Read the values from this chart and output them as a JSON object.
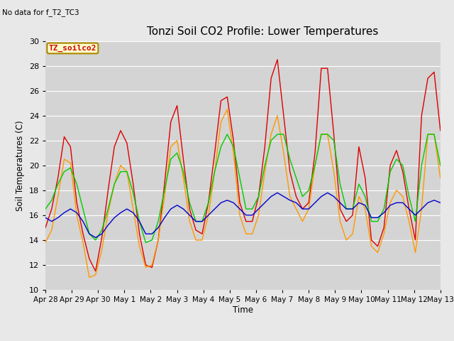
{
  "title": "Tonzi Soil CO2 Profile: Lower Temperatures",
  "top_left_text": "No data for f_T2_TC3",
  "annotation_text": "TZ_soilco2",
  "ylabel": "Soil Temperatures (C)",
  "xlabel": "Time",
  "ylim": [
    10,
    30
  ],
  "yticks": [
    10,
    12,
    14,
    16,
    18,
    20,
    22,
    24,
    26,
    28,
    30
  ],
  "bg_color": "#e8e8e8",
  "plot_bg_color": "#d4d4d4",
  "grid_color": "#ffffff",
  "series": {
    "open_8cm": {
      "color": "#dd0000"
    },
    "tree_8cm": {
      "color": "#ff9900"
    },
    "open_16cm": {
      "color": "#00cc00"
    },
    "tree_16cm": {
      "color": "#0000cc"
    }
  },
  "x_tick_labels": [
    "Apr 28",
    "Apr 29",
    "Apr 30",
    "May 1",
    "May 2",
    "May 3",
    "May 4",
    "May 5",
    "May 6",
    "May 7",
    "May 8",
    "May 9",
    "May 10",
    "May 11",
    "May 12",
    "May 13"
  ],
  "x_tick_positions": [
    0,
    4,
    8,
    12,
    16,
    20,
    24,
    28,
    32,
    36,
    40,
    44,
    48,
    52,
    56,
    60
  ],
  "open_8cm_data": [
    15.0,
    16.5,
    19.0,
    22.3,
    21.5,
    17.0,
    14.5,
    12.5,
    11.5,
    14.2,
    18.0,
    21.5,
    22.8,
    21.8,
    18.5,
    14.5,
    12.0,
    11.8,
    14.0,
    18.5,
    23.5,
    24.8,
    20.5,
    16.5,
    14.8,
    14.5,
    17.0,
    21.0,
    25.2,
    25.5,
    22.0,
    17.0,
    15.5,
    15.5,
    17.5,
    21.5,
    27.0,
    28.5,
    24.0,
    19.5,
    17.5,
    16.5,
    17.0,
    21.0,
    27.8,
    27.8,
    22.5,
    16.5,
    15.5,
    16.0,
    21.5,
    19.0,
    14.0,
    13.5,
    15.0,
    20.0,
    21.2,
    19.5,
    16.5,
    14.0,
    24.0,
    27.0,
    27.5,
    22.8
  ],
  "tree_8cm_data": [
    13.8,
    14.8,
    17.5,
    20.5,
    20.2,
    16.0,
    13.8,
    11.0,
    11.2,
    13.2,
    16.2,
    18.5,
    20.0,
    19.5,
    16.5,
    13.5,
    11.8,
    12.0,
    14.0,
    17.5,
    21.5,
    22.0,
    19.0,
    15.5,
    14.0,
    14.0,
    16.0,
    19.5,
    23.5,
    24.5,
    21.0,
    16.0,
    14.5,
    14.5,
    16.0,
    19.5,
    22.5,
    24.0,
    21.0,
    17.5,
    16.5,
    15.5,
    16.5,
    20.0,
    22.5,
    22.5,
    19.5,
    15.5,
    14.0,
    14.5,
    17.5,
    16.5,
    13.5,
    13.0,
    14.5,
    17.0,
    18.0,
    17.5,
    15.5,
    13.0,
    16.5,
    22.5,
    22.5,
    19.0
  ],
  "open_16cm_data": [
    16.5,
    17.2,
    18.5,
    19.5,
    19.8,
    18.5,
    16.5,
    14.5,
    14.0,
    14.8,
    16.5,
    18.5,
    19.5,
    19.5,
    17.8,
    15.5,
    13.8,
    14.0,
    15.5,
    18.0,
    20.5,
    21.0,
    19.5,
    17.0,
    15.5,
    15.5,
    17.0,
    19.5,
    21.5,
    22.5,
    21.5,
    19.0,
    16.5,
    16.5,
    17.5,
    20.0,
    22.0,
    22.5,
    22.5,
    20.5,
    19.0,
    17.5,
    18.0,
    20.0,
    22.5,
    22.5,
    22.0,
    18.5,
    16.5,
    16.5,
    18.5,
    17.5,
    15.5,
    15.5,
    16.5,
    19.5,
    20.5,
    20.0,
    17.5,
    15.5,
    20.0,
    22.5,
    22.5,
    20.0
  ],
  "tree_16cm_data": [
    15.8,
    15.5,
    15.8,
    16.2,
    16.5,
    16.2,
    15.5,
    14.5,
    14.2,
    14.5,
    15.2,
    15.8,
    16.2,
    16.5,
    16.2,
    15.5,
    14.5,
    14.5,
    15.0,
    15.8,
    16.5,
    16.8,
    16.5,
    16.0,
    15.5,
    15.5,
    16.0,
    16.5,
    17.0,
    17.2,
    17.0,
    16.5,
    16.0,
    16.0,
    16.5,
    17.0,
    17.5,
    17.8,
    17.5,
    17.2,
    17.0,
    16.5,
    16.5,
    17.0,
    17.5,
    17.8,
    17.5,
    17.0,
    16.5,
    16.5,
    17.0,
    16.8,
    15.8,
    15.8,
    16.2,
    16.8,
    17.0,
    17.0,
    16.5,
    16.0,
    16.5,
    17.0,
    17.2,
    17.0
  ]
}
